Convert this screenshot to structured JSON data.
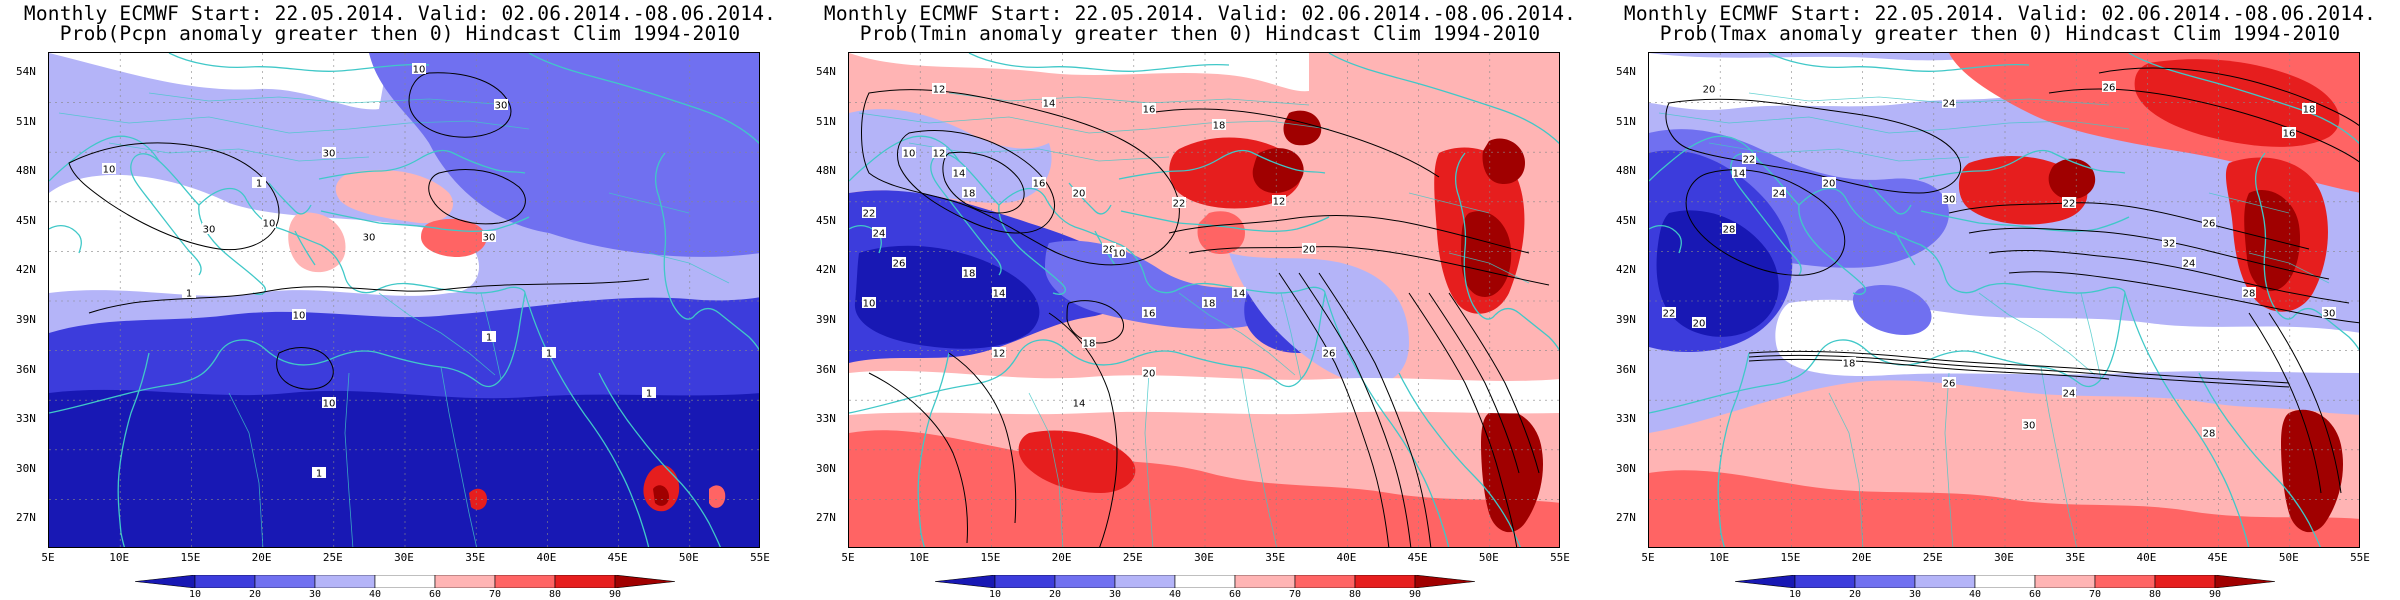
{
  "panels": [
    {
      "title1": "Monthly ECMWF Start: 22.05.2014. Valid: 02.06.2014.-08.06.2014.",
      "title2": "Prob(Pcpn anomaly greater then 0) Hindcast Clim 1994-2010",
      "contour_labels": [
        "10",
        "30",
        "10",
        "1",
        "30",
        "10",
        "30",
        "1",
        "10",
        "1",
        "30",
        "1",
        "1",
        "1",
        "10",
        "30"
      ]
    },
    {
      "title1": "Monthly ECMWF Start: 22.05.2014. Valid: 02.06.2014.-08.06.2014.",
      "title2": "Prob(Tmin anomaly greater then 0) Hindcast Clim 1994-2010",
      "contour_labels": [
        "12",
        "14",
        "16",
        "18",
        "10",
        "12",
        "14",
        "18",
        "16",
        "20",
        "22",
        "24",
        "26",
        "28",
        "18",
        "14",
        "10",
        "22",
        "12",
        "20",
        "16",
        "18",
        "14",
        "10",
        "18",
        "12",
        "14",
        "20",
        "26"
      ]
    },
    {
      "title1": "Monthly ECMWF Start: 22.05.2014. Valid: 02.06.2014.-08.06.2014.",
      "title2": "Prob(Tmax anomaly greater then 0) Hindcast Clim 1994-2010",
      "contour_labels": [
        "20",
        "24",
        "26",
        "18",
        "16",
        "22",
        "14",
        "20",
        "24",
        "28",
        "30",
        "22",
        "26",
        "32",
        "24",
        "28",
        "30",
        "22",
        "20",
        "18",
        "26",
        "24",
        "30",
        "28"
      ]
    }
  ],
  "lat_labels": [
    "54N",
    "51N",
    "48N",
    "45N",
    "42N",
    "39N",
    "36N",
    "33N",
    "30N",
    "27N"
  ],
  "lon_labels": [
    "5E",
    "10E",
    "15E",
    "20E",
    "25E",
    "30E",
    "35E",
    "40E",
    "45E",
    "50E",
    "55E"
  ],
  "colorbar": {
    "labels": [
      "10",
      "20",
      "30",
      "40",
      "60",
      "70",
      "80",
      "90"
    ],
    "colors": [
      "#1818b4",
      "#3c3cdc",
      "#7070f0",
      "#b4b4f8",
      "#ffffff",
      "#ffb4b4",
      "#ff6464",
      "#e61e1e",
      "#a00000"
    ]
  },
  "colors": {
    "contour": "#000000",
    "coast": "#40c8c8"
  }
}
